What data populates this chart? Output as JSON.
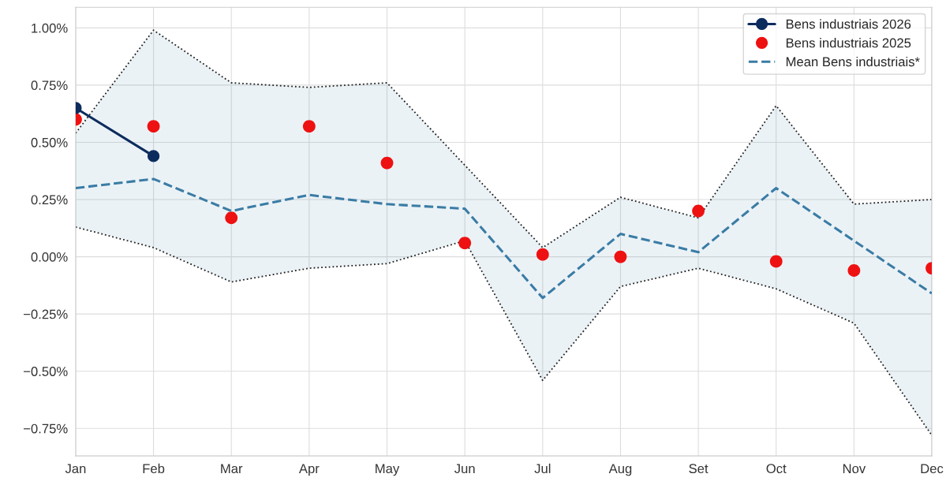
{
  "chart_data": {
    "type": "line",
    "categories": [
      "Jan",
      "Feb",
      "Mar",
      "Apr",
      "May",
      "Jun",
      "Jul",
      "Aug",
      "Set",
      "Oct",
      "Nov",
      "Dec"
    ],
    "series": [
      {
        "name": "Bens industriais 2026",
        "color": "#0d2c5e",
        "marker": "circle",
        "line_style": "solid",
        "values": [
          0.65,
          0.44,
          null,
          null,
          null,
          null,
          null,
          null,
          null,
          null,
          null,
          null
        ]
      },
      {
        "name": "Bens industriais 2025",
        "type": "scatter",
        "color": "#ee1111",
        "marker": "circle",
        "values": [
          0.6,
          0.57,
          0.17,
          0.57,
          0.41,
          0.06,
          0.01,
          0.0,
          0.2,
          -0.02,
          -0.06,
          -0.05
        ]
      },
      {
        "color": "#222222",
        "marker": "none",
        "line_style": "dotted",
        "values": [
          0.54,
          0.99,
          0.76,
          0.74,
          0.76,
          0.4,
          0.04,
          0.26,
          0.17,
          0.66,
          0.23,
          0.25
        ]
      },
      {
        "color": "#222222",
        "marker": "none",
        "line_style": "dotted",
        "values": [
          0.13,
          0.04,
          -0.11,
          -0.05,
          -0.03,
          0.07,
          -0.54,
          -0.13,
          -0.05,
          -0.14,
          -0.29,
          -0.78
        ]
      },
      {
        "name": "Mean Bens industriais*",
        "color": "#3a7ca5",
        "marker": "none",
        "line_style": "dashed",
        "values": [
          0.3,
          0.34,
          0.2,
          0.27,
          0.23,
          0.21,
          -0.18,
          0.1,
          0.02,
          0.3,
          0.07,
          -0.16
        ],
        "lower": [
          0.13,
          0.04,
          -0.11,
          -0.05,
          -0.03,
          0.07,
          -0.54,
          -0.13,
          -0.05,
          -0.14,
          -0.29,
          -0.78
        ],
        "upper": [
          0.54,
          0.99,
          0.76,
          0.74,
          0.76,
          0.4,
          0.04,
          0.26,
          0.17,
          0.66,
          0.23,
          0.25
        ]
      }
    ],
    "ylim": [
      -0.87,
      1.09
    ],
    "yticks": [
      {
        "value": -0.75,
        "label": "−0.75%"
      },
      {
        "value": -0.5,
        "label": "−0.50%"
      },
      {
        "value": -0.25,
        "label": "−0.25%"
      },
      {
        "value": 0,
        "label": "0.00%"
      },
      {
        "value": 0.25,
        "label": "0.25%"
      },
      {
        "value": 0.5,
        "label": "0.50%"
      },
      {
        "value": 0.75,
        "label": "0.75%"
      },
      {
        "value": 1.0,
        "label": "1.00%"
      }
    ],
    "grid": true,
    "legend": "top right"
  }
}
